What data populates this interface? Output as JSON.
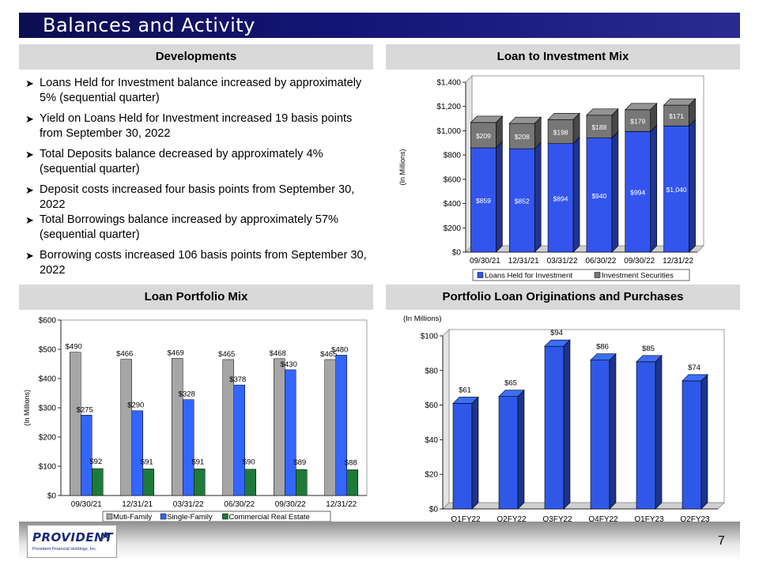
{
  "page": {
    "title": "Balances and Activity",
    "page_number": "7",
    "logo_text": "PROVIDENT",
    "logo_subtext": "Provident Financial Holdings, Inc."
  },
  "developments": {
    "header": "Developments",
    "bullets": [
      "Loans Held for Investment balance increased by approximately 5% (sequential quarter)",
      "Yield on Loans Held for Investment increased 19 basis points from September 30, 2022",
      "Total Deposits balance decreased by approximately 4% (sequential quarter)",
      "Deposit costs increased four basis points from September 30, 2022",
      "Total Borrowings balance increased by approximately 57% (sequential quarter)",
      "Borrowing costs increased 106 basis points from September 30, 2022"
    ]
  },
  "loan_investment": {
    "header": "Loan to Investment Mix"
  },
  "loan_portfolio": {
    "header": "Loan Portfolio Mix"
  },
  "originations": {
    "header": "Portfolio Loan Originations and Purchases"
  },
  "chart_data": [
    {
      "type": "bar",
      "stacked": true,
      "title": "Loan to Investment Mix",
      "ylabel": "(In Millions)",
      "categories": [
        "09/30/21",
        "12/31/21",
        "03/31/22",
        "06/30/22",
        "09/30/22",
        "12/31/22"
      ],
      "series": [
        {
          "name": "Loans Held for Investment",
          "color": "#3355ee",
          "values": [
            859,
            852,
            894,
            940,
            994,
            1040
          ],
          "labels": [
            "$859",
            "$852",
            "$894",
            "$940",
            "$994",
            "$1,040"
          ]
        },
        {
          "name": "Investment Securities",
          "color": "#777777",
          "values": [
            209,
            208,
            198,
            188,
            179,
            171
          ],
          "labels": [
            "$209",
            "$208",
            "$198",
            "$188",
            "$179",
            "$171"
          ]
        }
      ],
      "ylim": [
        0,
        1400
      ],
      "yticks": [
        0,
        200,
        400,
        600,
        800,
        1000,
        1200,
        1400
      ],
      "ytick_labels": [
        "$0",
        "$200",
        "$400",
        "$600",
        "$800",
        "$1,000",
        "$1,200",
        "$1,400"
      ],
      "legend": "bottom",
      "grid": false
    },
    {
      "type": "bar",
      "title": "Loan Portfolio Mix",
      "ylabel": "(In Millions)",
      "categories": [
        "09/30/21",
        "12/31/21",
        "03/31/22",
        "06/30/22",
        "09/30/22",
        "12/31/22"
      ],
      "series": [
        {
          "name": "Muti-Family",
          "color": "#a6a6a6",
          "values": [
            490,
            466,
            469,
            465,
            468,
            465
          ],
          "labels": [
            "$490",
            "$466",
            "$469",
            "$465",
            "$468",
            "$465"
          ]
        },
        {
          "name": "Single-Family",
          "color": "#3366ff",
          "values": [
            275,
            290,
            328,
            378,
            430,
            480
          ],
          "labels": [
            "$275",
            "$290",
            "$328",
            "$378",
            "$430",
            "$480"
          ]
        },
        {
          "name": "Commercial Real Estate",
          "color": "#1e7a3a",
          "values": [
            92,
            91,
            91,
            90,
            89,
            88
          ],
          "labels": [
            "$92",
            "$91",
            "$91",
            "$90",
            "$89",
            "$88"
          ]
        }
      ],
      "ylim": [
        0,
        600
      ],
      "yticks": [
        0,
        100,
        200,
        300,
        400,
        500,
        600
      ],
      "ytick_labels": [
        "$0",
        "$100",
        "$200",
        "$300",
        "$400",
        "$500",
        "$600"
      ],
      "legend": "bottom",
      "grid": false
    },
    {
      "type": "bar",
      "title": "Portfolio Loan Originations and Purchases",
      "ylabel": "(In Millions)",
      "categories": [
        "Q1FY22",
        "Q2FY22",
        "Q3FY22",
        "Q4FY22",
        "Q1FY23",
        "Q2FY23"
      ],
      "series": [
        {
          "name": "",
          "color": "#2f58e8",
          "values": [
            61,
            65,
            94,
            86,
            85,
            74
          ],
          "labels": [
            "$61",
            "$65",
            "$94",
            "$86",
            "$85",
            "$74"
          ]
        }
      ],
      "ylim": [
        0,
        100
      ],
      "yticks": [
        0,
        20,
        40,
        60,
        80,
        100
      ],
      "ytick_labels": [
        "$0",
        "$20",
        "$40",
        "$60",
        "$80",
        "$100"
      ],
      "legend": "none",
      "grid": false
    }
  ]
}
